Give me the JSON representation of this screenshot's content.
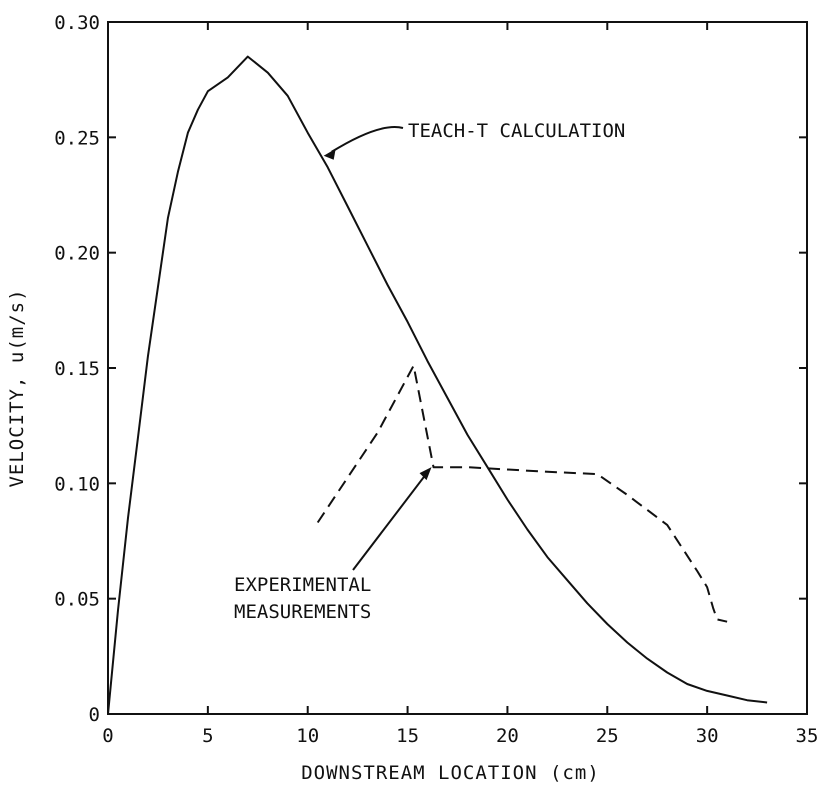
{
  "chart_data": {
    "type": "line",
    "title": "",
    "xlabel": "DOWNSTREAM LOCATION (cm)",
    "ylabel": "VELOCITY, u(m/s)",
    "xlim": [
      0,
      35
    ],
    "ylim": [
      0,
      0.3
    ],
    "xticks": [
      0,
      5,
      10,
      15,
      20,
      25,
      30,
      35
    ],
    "yticks": [
      0,
      0.05,
      0.1,
      0.15,
      0.2,
      0.25,
      0.3
    ],
    "xtick_labels": [
      "0",
      "5",
      "10",
      "15",
      "20",
      "25",
      "30",
      "35"
    ],
    "ytick_labels": [
      "0",
      "0.05",
      "0.10",
      "0.15",
      "0.20",
      "0.25",
      "0.30"
    ],
    "grid": false,
    "legend": "none",
    "series": [
      {
        "name": "TEACH-T CALCULATION",
        "style": "solid",
        "color": "#111111",
        "x": [
          0,
          0.5,
          1.0,
          1.5,
          2.0,
          2.5,
          3.0,
          3.5,
          4.0,
          4.5,
          5.0,
          6.0,
          7.0,
          8.0,
          9.0,
          10.0,
          11.0,
          12.0,
          13.0,
          14.0,
          15.0,
          16.0,
          17.0,
          18.0,
          19.0,
          20.0,
          21.0,
          22.0,
          23.0,
          24.0,
          25.0,
          26.0,
          27.0,
          28.0,
          29.0,
          30.0,
          31.0,
          32.0,
          33.0
        ],
        "y": [
          0.0,
          0.045,
          0.085,
          0.12,
          0.155,
          0.185,
          0.215,
          0.235,
          0.252,
          0.262,
          0.27,
          0.276,
          0.285,
          0.278,
          0.268,
          0.252,
          0.237,
          0.22,
          0.203,
          0.186,
          0.17,
          0.153,
          0.137,
          0.121,
          0.107,
          0.093,
          0.08,
          0.068,
          0.058,
          0.048,
          0.039,
          0.031,
          0.024,
          0.018,
          0.013,
          0.01,
          0.008,
          0.006,
          0.005
        ]
      },
      {
        "name": "EXPERIMENTAL MEASUREMENTS",
        "style": "dashed",
        "color": "#111111",
        "x": [
          10.5,
          13.5,
          15.3,
          16.3,
          16.5,
          18.0,
          20.0,
          22.0,
          24.5,
          26.0,
          28.0,
          29.5,
          30.0,
          30.3,
          30.5,
          31.0
        ],
        "y": [
          0.083,
          0.122,
          0.151,
          0.107,
          0.107,
          0.107,
          0.106,
          0.105,
          0.104,
          0.095,
          0.082,
          0.062,
          0.055,
          0.046,
          0.041,
          0.04
        ]
      }
    ],
    "annotations": [
      {
        "id": "teach",
        "lines": [
          "TEACH-T CALCULATION"
        ],
        "arrow_to": [
          10.8,
          0.242
        ]
      },
      {
        "id": "exp",
        "lines": [
          "EXPERIMENTAL",
          "MEASUREMENTS"
        ],
        "arrow_to": [
          16.2,
          0.107
        ]
      }
    ]
  }
}
